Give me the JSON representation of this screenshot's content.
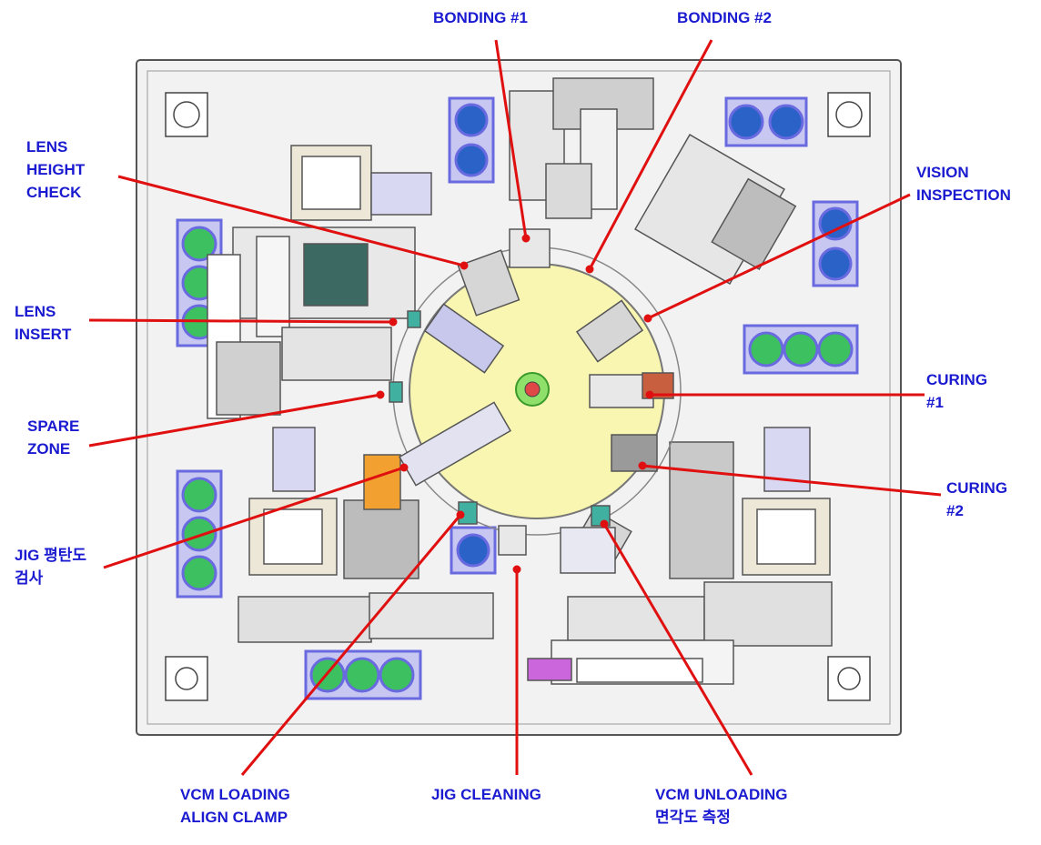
{
  "labels": {
    "bonding1": "BONDING #1",
    "bonding2": "BONDING #2",
    "lens_height_check": "LENS\nHEIGHT\nCHECK",
    "vision_inspection": "VISION\nINSPECTION",
    "lens_insert": "LENS\nINSERT",
    "curing1": "CURING\n#1",
    "spare_zone": "SPARE\nZONE",
    "curing2": "CURING\n#2",
    "jig_flatness": "JIG 평탄도\n검사",
    "vcm_loading": "VCM LOADING\nALIGN CLAMP",
    "jig_cleaning": "JIG CLEANING",
    "vcm_unloading": "VCM UNLOADING\n면각도 측정"
  },
  "colors": {
    "label_text": "#1a1ad0",
    "leader_line": "#e01010",
    "base_plate": "#f2f2f2",
    "index_table": "#f8f6b0",
    "fan_frame": "#6a6ae0",
    "fan_green": "#3cc060",
    "fan_blue": "#2a62c8"
  }
}
